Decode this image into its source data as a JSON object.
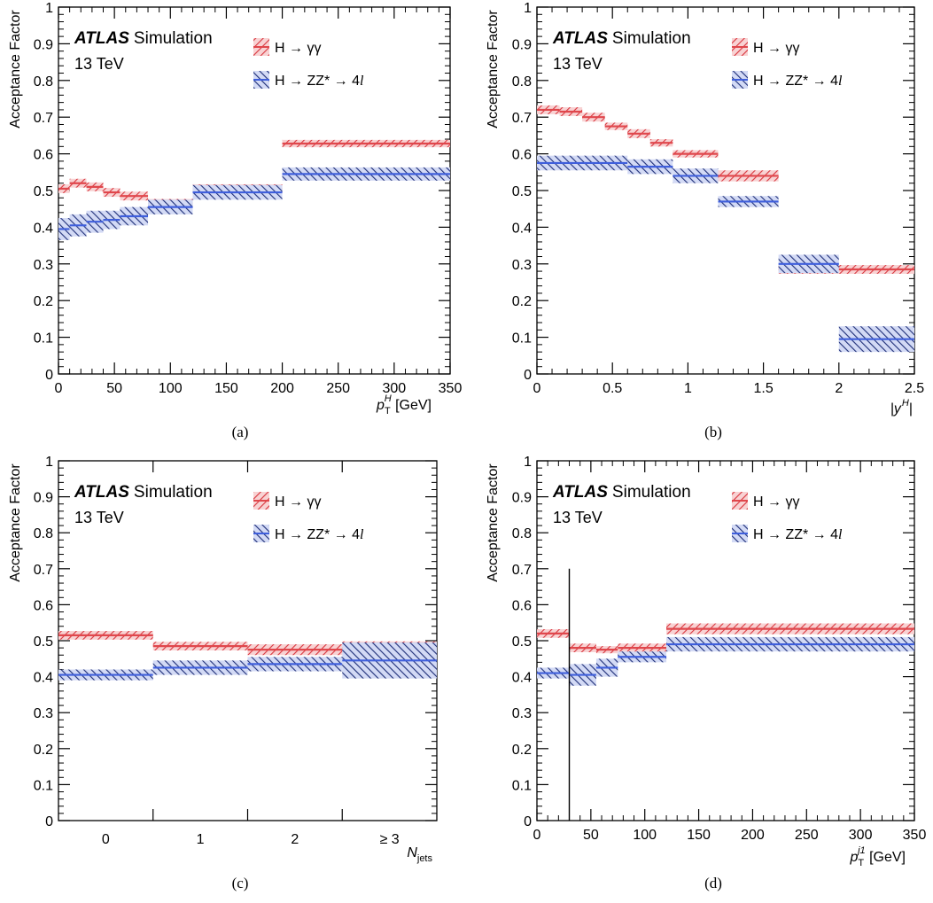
{
  "chart_data": [
    {
      "type": "line",
      "panel_label": "(a)",
      "atlas_label": "ATLAS",
      "simulation_label": "Simulation",
      "energy_label": "13 TeV",
      "ylabel": "Acceptance Factor",
      "xlabel": {
        "base": "p",
        "sub": "T",
        "sup": "H",
        "unit": " [GeV]"
      },
      "xlim": [
        0,
        350
      ],
      "ylim": [
        0,
        1
      ],
      "x_ticks": [
        "0",
        "50",
        "100",
        "150",
        "200",
        "250",
        "300",
        "350"
      ],
      "y_ticks": [
        "0",
        "0.1",
        "0.2",
        "0.3",
        "0.4",
        "0.5",
        "0.6",
        "0.7",
        "0.8",
        "0.9",
        "1"
      ],
      "legend": [
        {
          "parts": [
            "H → γγ"
          ],
          "color": "#e0474c"
        },
        {
          "parts": [
            "H → ZZ* → 4",
            "l"
          ],
          "color": "#3f5fdc"
        }
      ],
      "series": [
        {
          "name": "H → γγ",
          "color": "#e0474c",
          "bins": [
            [
              0,
              10,
              0.505,
              0.012
            ],
            [
              10,
              25,
              0.52,
              0.012
            ],
            [
              25,
              40,
              0.51,
              0.012
            ],
            [
              40,
              55,
              0.495,
              0.012
            ],
            [
              55,
              80,
              0.485,
              0.012
            ],
            [
              80,
              120,
              0.465,
              0.012
            ],
            [
              120,
              200,
              0.505,
              0.012
            ],
            [
              200,
              350,
              0.628,
              0.01
            ]
          ]
        },
        {
          "name": "H → ZZ* → 4l",
          "color": "#3f5fdc",
          "bins": [
            [
              0,
              10,
              0.395,
              0.03
            ],
            [
              10,
              25,
              0.405,
              0.03
            ],
            [
              25,
              40,
              0.415,
              0.03
            ],
            [
              40,
              55,
              0.42,
              0.025
            ],
            [
              55,
              80,
              0.43,
              0.025
            ],
            [
              80,
              120,
              0.455,
              0.02
            ],
            [
              120,
              200,
              0.495,
              0.02
            ],
            [
              200,
              350,
              0.545,
              0.018
            ]
          ]
        }
      ]
    },
    {
      "type": "line",
      "panel_label": "(b)",
      "atlas_label": "ATLAS",
      "simulation_label": "Simulation",
      "energy_label": "13 TeV",
      "ylabel": "Acceptance Factor",
      "xlabel": {
        "base": "|y",
        "sub": "",
        "sup": "H",
        "unit": "|"
      },
      "xlim": [
        0,
        2.5
      ],
      "ylim": [
        0,
        1
      ],
      "x_ticks": [
        "0",
        "0.5",
        "1",
        "1.5",
        "2",
        "2.5"
      ],
      "y_ticks": [
        "0",
        "0.1",
        "0.2",
        "0.3",
        "0.4",
        "0.5",
        "0.6",
        "0.7",
        "0.8",
        "0.9",
        "1"
      ],
      "legend": [
        {
          "parts": [
            "H → γγ"
          ],
          "color": "#e0474c"
        },
        {
          "parts": [
            "H → ZZ* → 4",
            "l"
          ],
          "color": "#3f5fdc"
        }
      ],
      "series": [
        {
          "name": "H → γγ",
          "color": "#e0474c",
          "bins": [
            [
              0,
              0.15,
              0.72,
              0.012
            ],
            [
              0.15,
              0.3,
              0.715,
              0.012
            ],
            [
              0.3,
              0.45,
              0.7,
              0.012
            ],
            [
              0.45,
              0.6,
              0.675,
              0.01
            ],
            [
              0.6,
              0.75,
              0.655,
              0.012
            ],
            [
              0.75,
              0.9,
              0.63,
              0.01
            ],
            [
              0.9,
              1.2,
              0.6,
              0.01
            ],
            [
              1.2,
              1.6,
              0.54,
              0.015
            ],
            [
              1.6,
              2.5,
              0.285,
              0.012
            ]
          ]
        },
        {
          "name": "H → ZZ* → 4l",
          "color": "#3f5fdc",
          "bins": [
            [
              0,
              0.6,
              0.575,
              0.02
            ],
            [
              0.6,
              0.9,
              0.565,
              0.02
            ],
            [
              0.9,
              1.2,
              0.54,
              0.02
            ],
            [
              1.2,
              1.6,
              0.47,
              0.015
            ],
            [
              1.6,
              2.0,
              0.3,
              0.025
            ],
            [
              2.0,
              2.5,
              0.095,
              0.035
            ]
          ]
        }
      ]
    },
    {
      "type": "line",
      "panel_label": "(c)",
      "atlas_label": "ATLAS",
      "simulation_label": "Simulation",
      "energy_label": "13 TeV",
      "ylabel": "Acceptance Factor",
      "xlabel": {
        "base": "N",
        "sub": "jets",
        "sup": "",
        "unit": ""
      },
      "xlim": [
        0,
        4
      ],
      "ylim": [
        0,
        1
      ],
      "categories": [
        "0",
        "1",
        "2",
        "≥ 3"
      ],
      "y_ticks": [
        "0",
        "0.1",
        "0.2",
        "0.3",
        "0.4",
        "0.5",
        "0.6",
        "0.7",
        "0.8",
        "0.9",
        "1"
      ],
      "legend": [
        {
          "parts": [
            "H → γγ"
          ],
          "color": "#e0474c"
        },
        {
          "parts": [
            "H → ZZ* → 4",
            "l"
          ],
          "color": "#3f5fdc"
        }
      ],
      "series": [
        {
          "name": "H → γγ",
          "color": "#e0474c",
          "bins": [
            [
              0,
              1,
              0.515,
              0.012
            ],
            [
              1,
              2,
              0.485,
              0.012
            ],
            [
              2,
              3,
              0.475,
              0.015
            ],
            [
              3,
              4,
              0.48,
              0.018
            ]
          ]
        },
        {
          "name": "H → ZZ* → 4l",
          "color": "#3f5fdc",
          "bins": [
            [
              0,
              1,
              0.405,
              0.015
            ],
            [
              1,
              2,
              0.425,
              0.02
            ],
            [
              2,
              3,
              0.435,
              0.02
            ],
            [
              3,
              4,
              0.445,
              0.05
            ]
          ]
        }
      ]
    },
    {
      "type": "line",
      "panel_label": "(d)",
      "atlas_label": "ATLAS",
      "simulation_label": "Simulation",
      "energy_label": "13 TeV",
      "ylabel": "Acceptance Factor",
      "xlabel": {
        "base": "p",
        "sub": "T",
        "sup": "j1",
        "unit": " [GeV]"
      },
      "xlim": [
        0,
        350
      ],
      "ylim": [
        0,
        1
      ],
      "x_ticks": [
        "0",
        "50",
        "100",
        "150",
        "200",
        "250",
        "300",
        "350"
      ],
      "y_ticks": [
        "0",
        "0.1",
        "0.2",
        "0.3",
        "0.4",
        "0.5",
        "0.6",
        "0.7",
        "0.8",
        "0.9",
        "1"
      ],
      "vertical_line": {
        "x": 30,
        "y_max": 0.7
      },
      "legend": [
        {
          "parts": [
            "H → γγ"
          ],
          "color": "#e0474c"
        },
        {
          "parts": [
            "H → ZZ* → 4",
            "l"
          ],
          "color": "#3f5fdc"
        }
      ],
      "series": [
        {
          "name": "H → γγ",
          "color": "#e0474c",
          "bins": [
            [
              0,
              30,
              0.52,
              0.012
            ],
            [
              30,
              55,
              0.48,
              0.012
            ],
            [
              55,
              75,
              0.475,
              0.01
            ],
            [
              75,
              120,
              0.48,
              0.012
            ],
            [
              120,
              350,
              0.533,
              0.015
            ]
          ]
        },
        {
          "name": "H → ZZ* → 4l",
          "color": "#3f5fdc",
          "bins": [
            [
              0,
              30,
              0.41,
              0.015
            ],
            [
              30,
              55,
              0.405,
              0.03
            ],
            [
              55,
              75,
              0.425,
              0.025
            ],
            [
              75,
              120,
              0.455,
              0.015
            ],
            [
              120,
              350,
              0.49,
              0.02
            ]
          ]
        }
      ]
    }
  ]
}
